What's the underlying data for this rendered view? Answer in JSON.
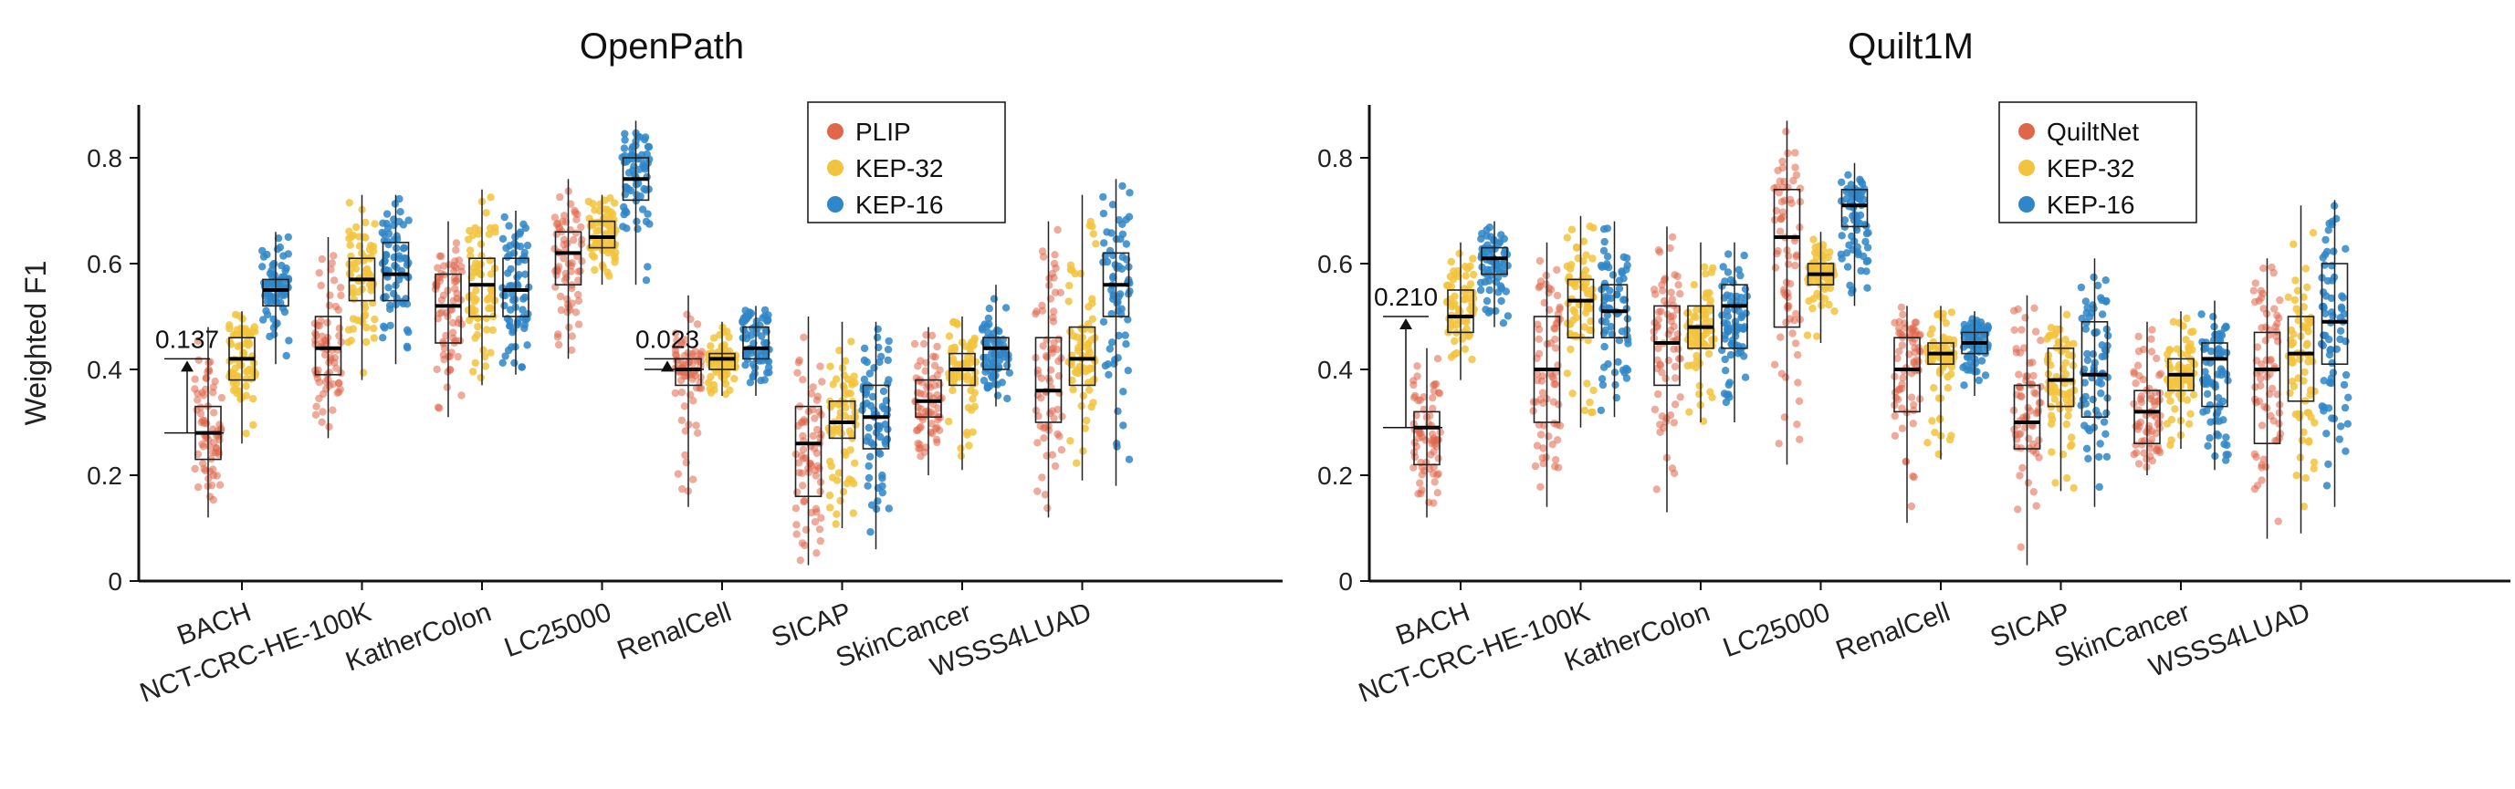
{
  "colors": {
    "red": "#e0664a",
    "yellow": "#f2c33c",
    "blue": "#2f86c8",
    "axis": "#111111",
    "box": "#222222"
  },
  "chart_data": [
    {
      "type": "box",
      "title": "OpenPath",
      "xlabel": "",
      "ylabel": "Weighted F1",
      "ylim": [
        0,
        0.9
      ],
      "yticks": [
        "0",
        "0.2",
        "0.4",
        "0.6",
        "0.8"
      ],
      "legend_position": "top-center",
      "categories": [
        "BACH",
        "NCT-CRC-HE-100K",
        "KatherColon",
        "LC25000",
        "RenalCell",
        "SICAP",
        "SkinCancer",
        "WSSS4LUAD"
      ],
      "series": [
        {
          "name": "PLIP",
          "color": "red",
          "stats": [
            {
              "min": 0.12,
              "q1": 0.23,
              "med": 0.28,
              "q3": 0.33,
              "max": 0.48
            },
            {
              "min": 0.27,
              "q1": 0.39,
              "med": 0.44,
              "q3": 0.5,
              "max": 0.65
            },
            {
              "min": 0.31,
              "q1": 0.45,
              "med": 0.52,
              "q3": 0.58,
              "max": 0.68
            },
            {
              "min": 0.42,
              "q1": 0.56,
              "med": 0.62,
              "q3": 0.66,
              "max": 0.76
            },
            {
              "min": 0.14,
              "q1": 0.37,
              "med": 0.4,
              "q3": 0.42,
              "max": 0.54
            },
            {
              "min": 0.03,
              "q1": 0.16,
              "med": 0.26,
              "q3": 0.33,
              "max": 0.5
            },
            {
              "min": 0.2,
              "q1": 0.31,
              "med": 0.34,
              "q3": 0.38,
              "max": 0.48
            },
            {
              "min": 0.12,
              "q1": 0.3,
              "med": 0.36,
              "q3": 0.46,
              "max": 0.68
            }
          ]
        },
        {
          "name": "KEP-32",
          "color": "yellow",
          "stats": [
            {
              "min": 0.26,
              "q1": 0.38,
              "med": 0.42,
              "q3": 0.46,
              "max": 0.51
            },
            {
              "min": 0.38,
              "q1": 0.53,
              "med": 0.57,
              "q3": 0.61,
              "max": 0.73
            },
            {
              "min": 0.37,
              "q1": 0.5,
              "med": 0.56,
              "q3": 0.61,
              "max": 0.74
            },
            {
              "min": 0.56,
              "q1": 0.63,
              "med": 0.65,
              "q3": 0.68,
              "max": 0.73
            },
            {
              "min": 0.35,
              "q1": 0.4,
              "med": 0.42,
              "q3": 0.43,
              "max": 0.49
            },
            {
              "min": 0.1,
              "q1": 0.27,
              "med": 0.3,
              "q3": 0.34,
              "max": 0.49
            },
            {
              "min": 0.21,
              "q1": 0.37,
              "med": 0.4,
              "q3": 0.43,
              "max": 0.5
            },
            {
              "min": 0.19,
              "q1": 0.37,
              "med": 0.42,
              "q3": 0.48,
              "max": 0.73
            }
          ]
        },
        {
          "name": "KEP-16",
          "color": "blue",
          "stats": [
            {
              "min": 0.41,
              "q1": 0.52,
              "med": 0.55,
              "q3": 0.57,
              "max": 0.66
            },
            {
              "min": 0.41,
              "q1": 0.53,
              "med": 0.58,
              "q3": 0.64,
              "max": 0.73
            },
            {
              "min": 0.39,
              "q1": 0.5,
              "med": 0.55,
              "q3": 0.61,
              "max": 0.7
            },
            {
              "min": 0.56,
              "q1": 0.72,
              "med": 0.76,
              "q3": 0.8,
              "max": 0.87
            },
            {
              "min": 0.35,
              "q1": 0.42,
              "med": 0.44,
              "q3": 0.48,
              "max": 0.52
            },
            {
              "min": 0.06,
              "q1": 0.25,
              "med": 0.31,
              "q3": 0.37,
              "max": 0.49
            },
            {
              "min": 0.33,
              "q1": 0.4,
              "med": 0.44,
              "q3": 0.46,
              "max": 0.56
            },
            {
              "min": 0.18,
              "q1": 0.5,
              "med": 0.56,
              "q3": 0.62,
              "max": 0.76
            }
          ]
        }
      ],
      "annotations": [
        {
          "category": 0,
          "label": "0.137",
          "from": 0.28,
          "to": 0.42
        },
        {
          "category": 4,
          "label": "0.023",
          "from": 0.4,
          "to": 0.42
        }
      ]
    },
    {
      "type": "box",
      "title": "Quilt1M",
      "xlabel": "",
      "ylabel": "",
      "ylim": [
        0,
        0.9
      ],
      "yticks": [
        "0",
        "0.2",
        "0.4",
        "0.6",
        "0.8"
      ],
      "legend_position": "top-center",
      "categories": [
        "BACH",
        "NCT-CRC-HE-100K",
        "KatherColon",
        "LC25000",
        "RenalCell",
        "SICAP",
        "SkinCancer",
        "WSSS4LUAD"
      ],
      "series": [
        {
          "name": "QuiltNet",
          "color": "red",
          "stats": [
            {
              "min": 0.12,
              "q1": 0.22,
              "med": 0.29,
              "q3": 0.32,
              "max": 0.44
            },
            {
              "min": 0.14,
              "q1": 0.3,
              "med": 0.4,
              "q3": 0.5,
              "max": 0.64
            },
            {
              "min": 0.13,
              "q1": 0.37,
              "med": 0.45,
              "q3": 0.52,
              "max": 0.67
            },
            {
              "min": 0.22,
              "q1": 0.48,
              "med": 0.65,
              "q3": 0.74,
              "max": 0.87
            },
            {
              "min": 0.11,
              "q1": 0.32,
              "med": 0.4,
              "q3": 0.46,
              "max": 0.52
            },
            {
              "min": 0.03,
              "q1": 0.25,
              "med": 0.3,
              "q3": 0.37,
              "max": 0.54
            },
            {
              "min": 0.2,
              "q1": 0.26,
              "med": 0.32,
              "q3": 0.36,
              "max": 0.49
            },
            {
              "min": 0.08,
              "q1": 0.26,
              "med": 0.4,
              "q3": 0.47,
              "max": 0.61
            }
          ]
        },
        {
          "name": "KEP-32",
          "color": "yellow",
          "stats": [
            {
              "min": 0.38,
              "q1": 0.47,
              "med": 0.5,
              "q3": 0.55,
              "max": 0.64
            },
            {
              "min": 0.29,
              "q1": 0.46,
              "med": 0.53,
              "q3": 0.57,
              "max": 0.69
            },
            {
              "min": 0.3,
              "q1": 0.44,
              "med": 0.48,
              "q3": 0.52,
              "max": 0.64
            },
            {
              "min": 0.45,
              "q1": 0.56,
              "med": 0.58,
              "q3": 0.6,
              "max": 0.66
            },
            {
              "min": 0.23,
              "q1": 0.41,
              "med": 0.43,
              "q3": 0.45,
              "max": 0.52
            },
            {
              "min": 0.17,
              "q1": 0.33,
              "med": 0.38,
              "q3": 0.44,
              "max": 0.52
            },
            {
              "min": 0.25,
              "q1": 0.36,
              "med": 0.39,
              "q3": 0.42,
              "max": 0.51
            },
            {
              "min": 0.09,
              "q1": 0.34,
              "med": 0.43,
              "q3": 0.5,
              "max": 0.71
            }
          ]
        },
        {
          "name": "KEP-16",
          "color": "blue",
          "stats": [
            {
              "min": 0.48,
              "q1": 0.58,
              "med": 0.61,
              "q3": 0.63,
              "max": 0.68
            },
            {
              "min": 0.31,
              "q1": 0.46,
              "med": 0.51,
              "q3": 0.56,
              "max": 0.68
            },
            {
              "min": 0.3,
              "q1": 0.44,
              "med": 0.52,
              "q3": 0.56,
              "max": 0.64
            },
            {
              "min": 0.52,
              "q1": 0.67,
              "med": 0.71,
              "q3": 0.74,
              "max": 0.79
            },
            {
              "min": 0.35,
              "q1": 0.43,
              "med": 0.45,
              "q3": 0.47,
              "max": 0.51
            },
            {
              "min": 0.14,
              "q1": 0.31,
              "med": 0.39,
              "q3": 0.49,
              "max": 0.61
            },
            {
              "min": 0.21,
              "q1": 0.33,
              "med": 0.42,
              "q3": 0.45,
              "max": 0.53
            },
            {
              "min": 0.14,
              "q1": 0.41,
              "med": 0.49,
              "q3": 0.6,
              "max": 0.72
            }
          ]
        }
      ],
      "annotations": [
        {
          "category": 0,
          "label": "0.210",
          "from": 0.29,
          "to": 0.5
        }
      ]
    }
  ]
}
